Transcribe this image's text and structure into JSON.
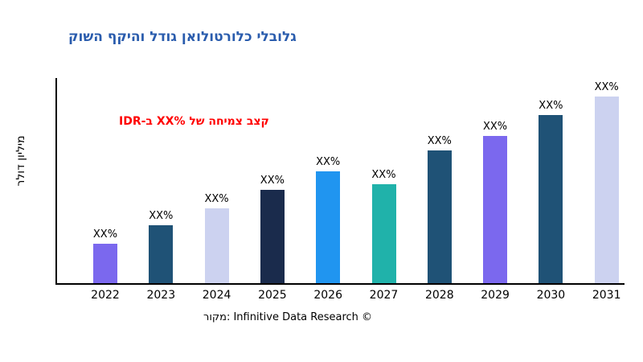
{
  "title": {
    "text": "גלובלי כלורטולואן גודל והיקף השוק",
    "color": "#2A5CAD"
  },
  "annotation": {
    "prefix": "קצב צמיחה של",
    "value": "XX%",
    "suffix": "ב-IDR",
    "color": "#FF0000"
  },
  "y_axis_label": "מיליון דולר",
  "caption": "מקור: Infinitive Data Research ©",
  "colors": {
    "background": "#FFFFFF",
    "axis": "#000000",
    "text": "#000000"
  },
  "chart_data": {
    "type": "bar",
    "title": "גלובלי כלורטולואן גודל והיקף השוק",
    "ylabel": "מיליון דולר",
    "xlabel": "",
    "categories": [
      "2022",
      "2023",
      "2024",
      "2025",
      "2026",
      "2027",
      "2028",
      "2029",
      "2030",
      "2031"
    ],
    "values": [
      21,
      31,
      40,
      50,
      60,
      53,
      71,
      79,
      90,
      100
    ],
    "values_unit": "relative height (tallest bar = 100); actual values masked as XX% in source",
    "bar_labels": [
      "XX%",
      "XX%",
      "XX%",
      "XX%",
      "XX%",
      "XX%",
      "XX%",
      "XX%",
      "XX%",
      "XX%"
    ],
    "bar_colors": [
      "#7B68EE",
      "#1F5276",
      "#CCD2F0",
      "#1A2B4C",
      "#2095F0",
      "#20B2AA",
      "#1F5276",
      "#7B68EE",
      "#1F5276",
      "#CCD2F0"
    ],
    "ylim": [
      0,
      100
    ],
    "grid": false,
    "legend": "none"
  }
}
